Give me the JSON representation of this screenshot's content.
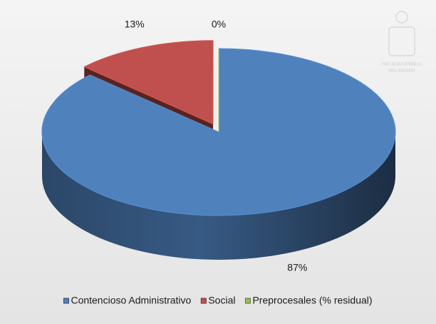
{
  "chart_data": {
    "type": "pie",
    "categories": [
      "Contencioso Administrativo",
      "Social",
      "Preprocesales (% residual)"
    ],
    "values": [
      87,
      13,
      0
    ],
    "value_labels": [
      "87%",
      "13%",
      "0%"
    ],
    "colors": [
      "#4f81bd",
      "#c0504d",
      "#9bbb59"
    ],
    "explode": [
      false,
      true,
      false
    ],
    "legend": "bottom"
  },
  "logo": {
    "lines": [
      "FISCALIA GENERAL",
      "DEL ESTADO"
    ]
  }
}
